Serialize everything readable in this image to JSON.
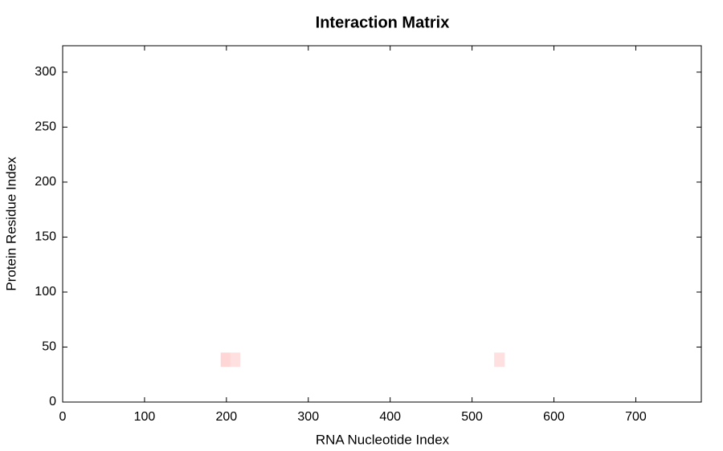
{
  "chart_data": {
    "type": "heatmap",
    "title": "Interaction Matrix",
    "x_label": "RNA Nucleotide Index",
    "y_label": "Protein Residue Index",
    "xlim": [
      0,
      780
    ],
    "ylim": [
      0,
      324
    ],
    "xticks": [
      0,
      100,
      200,
      300,
      400,
      500,
      600,
      700
    ],
    "yticks": [
      0,
      50,
      100,
      150,
      200,
      250,
      300
    ],
    "cells": [
      {
        "x": [
          193,
          205
        ],
        "y": [
          32,
          45
        ],
        "color": "#ffd6d6"
      },
      {
        "x": [
          205,
          217
        ],
        "y": [
          32,
          45
        ],
        "color": "#ffe0e0"
      },
      {
        "x": [
          527,
          540
        ],
        "y": [
          32,
          45
        ],
        "color": "#ffe0e0"
      }
    ]
  }
}
